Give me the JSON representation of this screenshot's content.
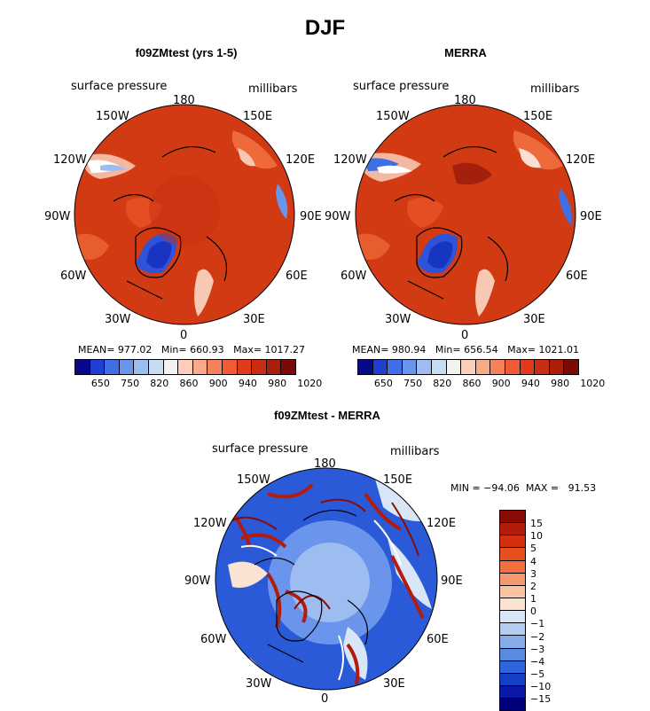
{
  "title": "DJF",
  "panels": [
    {
      "title": "f09ZMtest (yrs 1-5)",
      "field": "surface pressure",
      "units": "millibars",
      "stats": "MEAN= 977.02   Min= 660.93   Max= 1017.27",
      "lon_labels": [
        "180",
        "150E",
        "120E",
        "90E",
        "60E",
        "30E",
        "0",
        "30W",
        "60W",
        "90W",
        "120W",
        "150W"
      ]
    },
    {
      "title": "MERRA",
      "field": "surface pressure",
      "units": "millibars",
      "stats": "MEAN= 980.94   Min= 656.54   Max= 1021.01",
      "lon_labels": [
        "180",
        "150E",
        "120E",
        "90E",
        "60E",
        "30E",
        "0",
        "30W",
        "60W",
        "90W",
        "120W",
        "150W"
      ]
    },
    {
      "title": "f09ZMtest - MERRA",
      "field": "surface pressure",
      "units": "millibars",
      "stats": "MIN = −94.06  MAX =   91.53",
      "lon_labels": [
        "180",
        "150E",
        "120E",
        "90E",
        "60E",
        "30E",
        "0",
        "30W",
        "60W",
        "90W",
        "120W",
        "150W"
      ]
    }
  ],
  "colorbar_abs": {
    "labels": [
      "650",
      "750",
      "820",
      "860",
      "900",
      "940",
      "980",
      "1020"
    ],
    "colors": [
      "#08088a",
      "#1f3fd0",
      "#3f6fe6",
      "#6b95ec",
      "#9dbcf0",
      "#c8dbf5",
      "#f2f2f2",
      "#fbd0b8",
      "#f9aa86",
      "#f5805a",
      "#ee5b35",
      "#e03b1a",
      "#c92d12",
      "#aa1f0a",
      "#7a0a05"
    ]
  },
  "colorbar_diff": {
    "labels": [
      "15",
      "10",
      "5",
      "4",
      "3",
      "2",
      "1",
      "0",
      "−1",
      "−2",
      "−3",
      "−4",
      "−5",
      "−10",
      "−15"
    ],
    "colors": [
      "#8a0a05",
      "#b31b0b",
      "#d3300f",
      "#e6501f",
      "#f07040",
      "#f59a70",
      "#f9c3a4",
      "#fbe3d4",
      "#d9e6f7",
      "#b5cdf0",
      "#86abe8",
      "#5a8ae0",
      "#3066dc",
      "#1440c8",
      "#0a1aa6",
      "#00007a"
    ]
  }
}
